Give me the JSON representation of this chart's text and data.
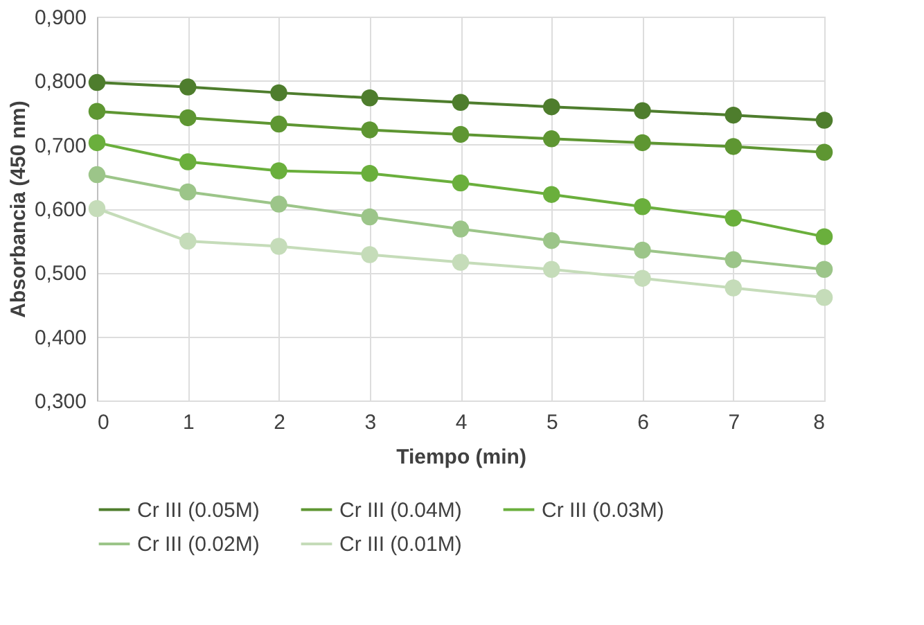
{
  "chart_data": {
    "type": "line",
    "xlabel": "Tiempo (min)",
    "ylabel": "Absorbancia (450 nm)",
    "x": [
      0,
      1,
      2,
      3,
      4,
      5,
      6,
      7,
      8
    ],
    "xlim": [
      0,
      8
    ],
    "xticks": [
      0,
      1,
      2,
      3,
      4,
      5,
      6,
      7,
      8
    ],
    "ylim": [
      0.3,
      0.9
    ],
    "yticks": [
      {
        "value": 0.3,
        "label": "0,300"
      },
      {
        "value": 0.4,
        "label": "0,400"
      },
      {
        "value": 0.5,
        "label": "0,500"
      },
      {
        "value": 0.6,
        "label": "0,600"
      },
      {
        "value": 0.7,
        "label": "0,700"
      },
      {
        "value": 0.8,
        "label": "0,800"
      },
      {
        "value": 0.9,
        "label": "0,900"
      }
    ],
    "grid": true,
    "legend": "bottom",
    "marker": "circle",
    "line_style": "solid",
    "series": [
      {
        "name": "Cr III (0.05M)",
        "color": "#4e7d2d",
        "values": [
          0.797,
          0.79,
          0.781,
          0.773,
          0.766,
          0.759,
          0.753,
          0.746,
          0.738
        ]
      },
      {
        "name": "Cr III (0.04M)",
        "color": "#5e9632",
        "values": [
          0.752,
          0.742,
          0.732,
          0.723,
          0.716,
          0.709,
          0.703,
          0.697,
          0.688
        ]
      },
      {
        "name": "Cr III (0.03M)",
        "color": "#6aaf3c",
        "values": [
          0.703,
          0.673,
          0.659,
          0.655,
          0.64,
          0.622,
          0.603,
          0.585,
          0.556
        ]
      },
      {
        "name": "Cr III (0.02M)",
        "color": "#9cc589",
        "values": [
          0.653,
          0.626,
          0.607,
          0.587,
          0.568,
          0.55,
          0.535,
          0.52,
          0.505
        ]
      },
      {
        "name": "Cr III (0.01M)",
        "color": "#c5dcb9",
        "values": [
          0.6,
          0.549,
          0.541,
          0.528,
          0.516,
          0.505,
          0.491,
          0.476,
          0.461
        ]
      }
    ]
  }
}
